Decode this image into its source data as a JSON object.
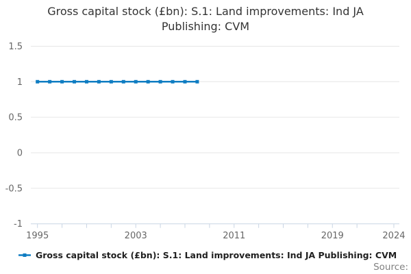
{
  "title": {
    "line1": "Gross capital stock (£bn): S.1: Land improvements: Ind JA",
    "line2": "Publishing: CVM"
  },
  "legend": {
    "label": "Gross capital stock (£bn): S.1: Land improvements: Ind JA Publishing: CVM"
  },
  "footer": {
    "source_label": "Source:"
  },
  "colors": {
    "series": "#0f7dc2",
    "grid": "#e6e6e6",
    "axis": "#c9d5e4",
    "tick_label": "#666666",
    "title_text": "#333333",
    "legend_text": "#1f1f1f",
    "source_text": "#808080"
  },
  "chart_data": {
    "type": "line",
    "title": "Gross capital stock (£bn): S.1: Land improvements: Ind JA Publishing: CVM",
    "series_name": "Gross capital stock (£bn): S.1: Land improvements: Ind JA Publishing: CVM",
    "marker": "square",
    "grid": true,
    "legend_position": "bottom-left",
    "x": [
      1995,
      1996,
      1997,
      1998,
      1999,
      2000,
      2001,
      2002,
      2003,
      2004,
      2005,
      2006,
      2007,
      2008
    ],
    "values": [
      1,
      1,
      1,
      1,
      1,
      1,
      1,
      1,
      1,
      1,
      1,
      1,
      1,
      1
    ],
    "x_axis": {
      "range_years": [
        1994.5,
        2024.5
      ],
      "tick_years": [
        1995,
        1997,
        1999,
        2001,
        2003,
        2005,
        2007,
        2009,
        2011,
        2013,
        2015,
        2017,
        2019,
        2021,
        2024
      ],
      "label_years": [
        "1995",
        "2003",
        "2011",
        "2019",
        "2024"
      ]
    },
    "y_axis": {
      "range": [
        -1,
        1.5
      ],
      "ticks": [
        {
          "value": 1.5,
          "label": "1.5"
        },
        {
          "value": 1,
          "label": "1"
        },
        {
          "value": 0.5,
          "label": "0.5"
        },
        {
          "value": 0,
          "label": "0"
        },
        {
          "value": -0.5,
          "label": "-0.5"
        },
        {
          "value": -1,
          "label": "-1"
        }
      ]
    }
  }
}
